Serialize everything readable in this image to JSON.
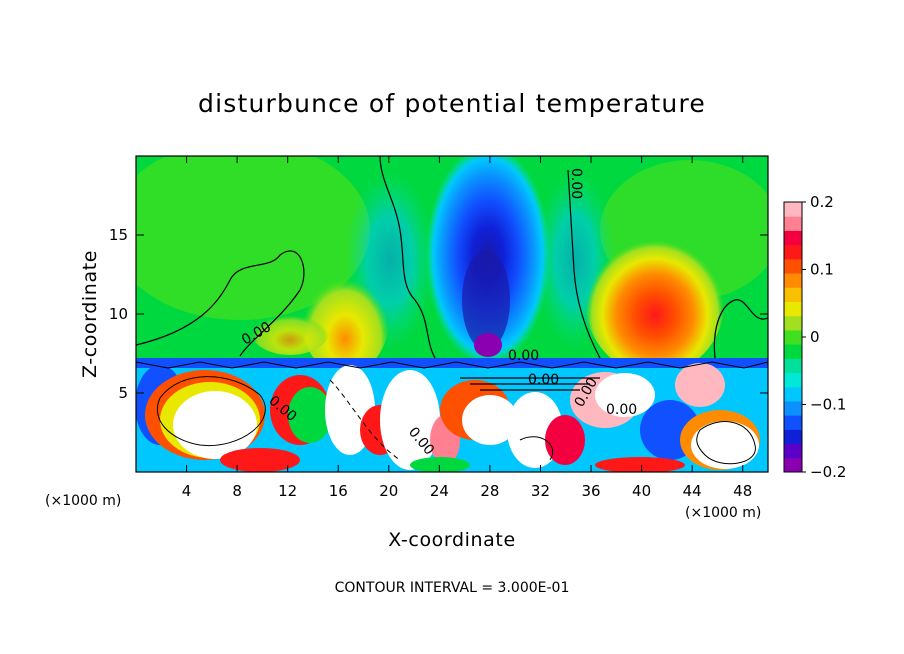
{
  "chart_data": {
    "type": "heatmap",
    "title": "disturbunce of potential temperature",
    "xlabel": "X-coordinate",
    "ylabel": "Z-coordinate",
    "x_unit": "(×1000 m)",
    "y_unit": "(×1000 m)",
    "xlim": [
      0,
      50
    ],
    "ylim": [
      0,
      20
    ],
    "x_ticks": [
      4,
      8,
      12,
      16,
      20,
      24,
      28,
      32,
      36,
      40,
      44,
      48
    ],
    "y_ticks": [
      5,
      10,
      15
    ],
    "colorbar": {
      "range": [
        -0.2,
        0.2
      ],
      "tick_values": [
        0.2,
        0.1,
        0,
        -0.1,
        -0.2
      ],
      "tick_labels": [
        "0.2",
        "0.1",
        "0",
        "−0.1",
        "−0.2"
      ],
      "colors": [
        "#8a00b0",
        "#5a00c8",
        "#1020d8",
        "#1050ff",
        "#0a90ff",
        "#00c8ff",
        "#00e8d8",
        "#00e098",
        "#00d840",
        "#40e020",
        "#a0e020",
        "#e8e800",
        "#f8c000",
        "#ff8c00",
        "#ff5000",
        "#ff1818",
        "#f40040",
        "#ff8090",
        "#ffb8c0"
      ]
    },
    "contour_labels": [
      "0.00",
      "0.00",
      "0.00",
      "0.00",
      "0.00",
      "0.00",
      "0.00",
      "0.00"
    ],
    "contour_interval_text": "CONTOUR INTERVAL = 3.000E-01",
    "features": {
      "negative_core_x": 28,
      "negative_core_z": 14,
      "positive_lobe_x": 41,
      "positive_lobe_z": 11,
      "boundary_layer_top_z": 7.2
    }
  }
}
